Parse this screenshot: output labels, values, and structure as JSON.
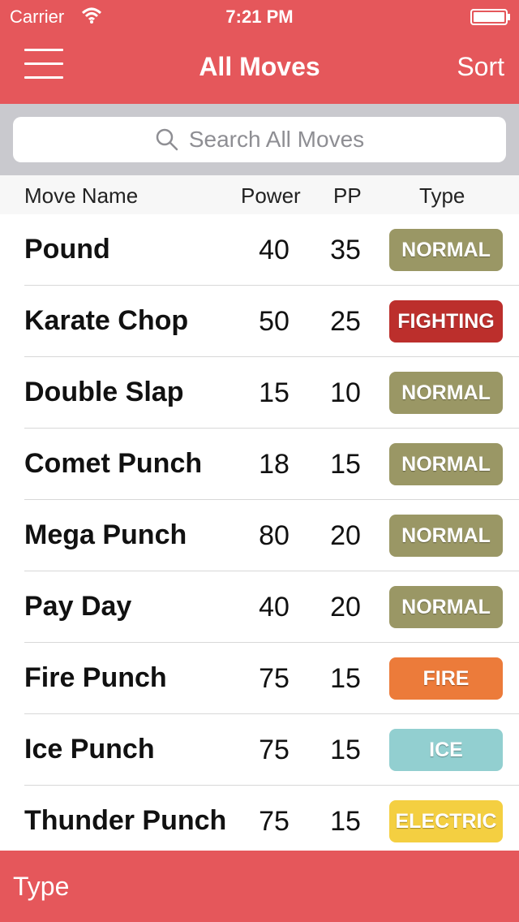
{
  "status_bar": {
    "carrier": "Carrier",
    "time": "7:21 PM"
  },
  "nav": {
    "title": "All Moves",
    "sort_label": "Sort"
  },
  "search": {
    "placeholder": "Search All Moves"
  },
  "columns": {
    "name": "Move Name",
    "power": "Power",
    "pp": "PP",
    "type": "Type"
  },
  "moves": [
    {
      "name": "Pound",
      "power": "40",
      "pp": "35",
      "type": "NORMAL",
      "color": "#9A9765"
    },
    {
      "name": "Karate Chop",
      "power": "50",
      "pp": "25",
      "type": "FIGHTING",
      "color": "#BC2F2C"
    },
    {
      "name": "Double Slap",
      "power": "15",
      "pp": "10",
      "type": "NORMAL",
      "color": "#9A9765"
    },
    {
      "name": "Comet Punch",
      "power": "18",
      "pp": "15",
      "type": "NORMAL",
      "color": "#9A9765"
    },
    {
      "name": "Mega Punch",
      "power": "80",
      "pp": "20",
      "type": "NORMAL",
      "color": "#9A9765"
    },
    {
      "name": "Pay Day",
      "power": "40",
      "pp": "20",
      "type": "NORMAL",
      "color": "#9A9765"
    },
    {
      "name": "Fire Punch",
      "power": "75",
      "pp": "15",
      "type": "FIRE",
      "color": "#EC7B3A"
    },
    {
      "name": "Ice Punch",
      "power": "75",
      "pp": "15",
      "type": "ICE",
      "color": "#92CFD0"
    },
    {
      "name": "Thunder Punch",
      "power": "75",
      "pp": "15",
      "type": "ELECTRIC",
      "color": "#F4CF41"
    }
  ],
  "footer": {
    "label": "Type"
  },
  "colors": {
    "accent": "#E5575B",
    "search_bg": "#C9C9CE"
  }
}
